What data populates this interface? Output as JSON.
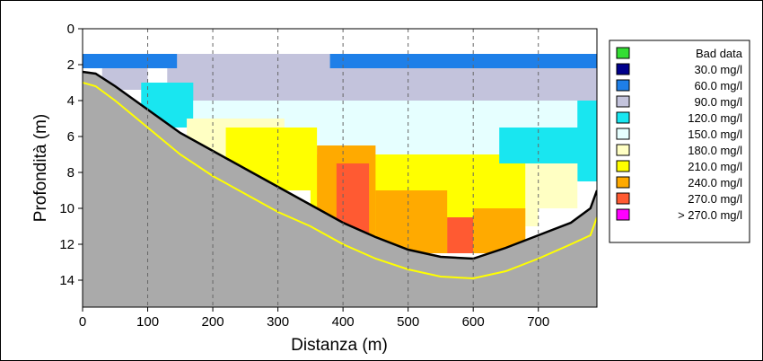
{
  "chart_data": {
    "type": "heatmap",
    "title": "",
    "xlabel": "Distanza (m)",
    "ylabel": "Profondità (m)",
    "xlim": [
      0,
      790
    ],
    "ylim": [
      0,
      15.5
    ],
    "y_inverted": true,
    "x_ticks": [
      0,
      100,
      200,
      300,
      400,
      500,
      600,
      700
    ],
    "y_ticks": [
      0,
      2,
      4,
      6,
      8,
      10,
      12,
      14
    ],
    "grid": "vertical dashed",
    "legend_position": "right",
    "legend": [
      {
        "label": "Bad data",
        "color": "#33dd33"
      },
      {
        "label": "30.0 mg/l",
        "color": "#00008b"
      },
      {
        "label": "60.0 mg/l",
        "color": "#1e7fe8"
      },
      {
        "label": "90.0 mg/l",
        "color": "#c3c3dc"
      },
      {
        "label": "120.0 mg/l",
        "color": "#19e6f0"
      },
      {
        "label": "150.0 mg/l",
        "color": "#e6ffff"
      },
      {
        "label": "180.0 mg/l",
        "color": "#ffffc3"
      },
      {
        "label": "210.0 mg/l",
        "color": "#ffff00"
      },
      {
        "label": "240.0 mg/l",
        "color": "#ffaa00"
      },
      {
        "label": "270.0 mg/l",
        "color": "#ff5a32"
      },
      {
        "label": "> 270.0 mg/l",
        "color": "#ff00ff"
      }
    ],
    "bottom_profile": {
      "x": [
        0,
        20,
        50,
        100,
        150,
        200,
        250,
        300,
        350,
        400,
        450,
        500,
        550,
        600,
        650,
        700,
        750,
        780,
        790
      ],
      "depth": [
        2.4,
        2.5,
        3.2,
        4.5,
        5.8,
        6.8,
        7.8,
        8.8,
        9.8,
        10.8,
        11.6,
        12.3,
        12.7,
        12.8,
        12.2,
        11.5,
        10.8,
        10.0,
        9.0
      ]
    },
    "secondary_bottom_line": {
      "x": [
        0,
        20,
        50,
        100,
        150,
        200,
        250,
        300,
        350,
        400,
        450,
        500,
        550,
        600,
        650,
        700,
        750,
        780,
        790
      ],
      "depth": [
        3.0,
        3.2,
        4.0,
        5.5,
        7.0,
        8.2,
        9.2,
        10.2,
        11.0,
        12.0,
        12.8,
        13.4,
        13.8,
        13.9,
        13.5,
        12.8,
        12.0,
        11.5,
        10.5
      ]
    },
    "cells": [
      {
        "x": [
          0,
          790
        ],
        "depth": [
          1.4,
          2.2
        ],
        "color": "#1e7fe8"
      },
      {
        "x": [
          145,
          380
        ],
        "depth": [
          1.4,
          2.2
        ],
        "color": "#c3c3dc"
      },
      {
        "x": [
          30,
          100
        ],
        "depth": [
          2.2,
          3.4
        ],
        "color": "#c3c3dc"
      },
      {
        "x": [
          130,
          790
        ],
        "depth": [
          2.2,
          4.0
        ],
        "color": "#c3c3dc"
      },
      {
        "x": [
          90,
          170
        ],
        "depth": [
          3.0,
          5.5
        ],
        "color": "#19e6f0"
      },
      {
        "x": [
          170,
          790
        ],
        "depth": [
          4.0,
          5.5
        ],
        "color": "#e6ffff"
      },
      {
        "x": [
          200,
          790
        ],
        "depth": [
          5.5,
          7.5
        ],
        "color": "#e6ffff"
      },
      {
        "x": [
          160,
          310
        ],
        "depth": [
          5.0,
          8.5
        ],
        "color": "#ffffc3"
      },
      {
        "x": [
          220,
          360
        ],
        "depth": [
          5.5,
          9.0
        ],
        "color": "#ffff00"
      },
      {
        "x": [
          360,
          700
        ],
        "depth": [
          7.5,
          11.0
        ],
        "color": "#ffffc3"
      },
      {
        "x": [
          350,
          680
        ],
        "depth": [
          7.0,
          12.5
        ],
        "color": "#ffff00"
      },
      {
        "x": [
          360,
          450
        ],
        "depth": [
          6.5,
          11.5
        ],
        "color": "#ffaa00"
      },
      {
        "x": [
          450,
          560
        ],
        "depth": [
          9.0,
          12.5
        ],
        "color": "#ffaa00"
      },
      {
        "x": [
          600,
          680
        ],
        "depth": [
          10.0,
          12.5
        ],
        "color": "#ffaa00"
      },
      {
        "x": [
          390,
          440
        ],
        "depth": [
          7.5,
          11.5
        ],
        "color": "#ff5a32"
      },
      {
        "x": [
          560,
          600
        ],
        "depth": [
          10.5,
          12.5
        ],
        "color": "#ff5a32"
      },
      {
        "x": [
          640,
          790
        ],
        "depth": [
          5.5,
          7.5
        ],
        "color": "#19e6f0"
      },
      {
        "x": [
          760,
          790
        ],
        "depth": [
          4.0,
          8.5
        ],
        "color": "#19e6f0"
      },
      {
        "x": [
          690,
          760
        ],
        "depth": [
          7.5,
          10.0
        ],
        "color": "#ffffc3"
      }
    ]
  }
}
